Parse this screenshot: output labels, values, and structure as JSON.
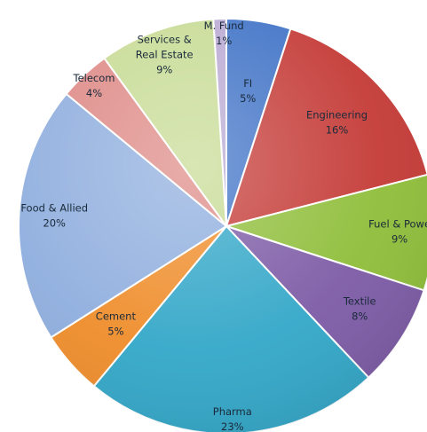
{
  "chart_data": {
    "type": "pie",
    "title": "",
    "start_angle_deg": 0,
    "direction": "clockwise",
    "slices": [
      {
        "name": "FI",
        "label_lines": [
          "FI"
        ],
        "value": 5,
        "value_label": "5%",
        "color": "#3f72c6"
      },
      {
        "name": "Engineering",
        "label_lines": [
          "Engineering"
        ],
        "value": 16,
        "value_label": "16%",
        "color": "#c43a36"
      },
      {
        "name": "Fuel & Power",
        "label_lines": [
          "Fuel & Powe"
        ],
        "value": 9,
        "value_label": "9%",
        "color": "#8fbe3a"
      },
      {
        "name": "Textile",
        "label_lines": [
          "Textile"
        ],
        "value": 8,
        "value_label": "8%",
        "color": "#7d5ba6"
      },
      {
        "name": "Pharma",
        "label_lines": [
          "Pharma"
        ],
        "value": 23,
        "value_label": "23%",
        "color": "#33a7c8"
      },
      {
        "name": "Cement",
        "label_lines": [
          "Cement"
        ],
        "value": 5,
        "value_label": "5%",
        "color": "#ef8d2b"
      },
      {
        "name": "Food & Allied",
        "label_lines": [
          "Food & Allied"
        ],
        "value": 20,
        "value_label": "20%",
        "color": "#8faede"
      },
      {
        "name": "Telecom",
        "label_lines": [
          "Telecom"
        ],
        "value": 4,
        "value_label": "4%",
        "color": "#de8a86"
      },
      {
        "name": "Services & Real Estate",
        "label_lines": [
          "Services &",
          "Real Estate"
        ],
        "value": 9,
        "value_label": "9%",
        "color": "#c7db94"
      },
      {
        "name": "M. Fund",
        "label_lines": [
          "M. Fund"
        ],
        "value": 1,
        "value_label": "1%",
        "color": "#b9a9d3"
      }
    ]
  }
}
